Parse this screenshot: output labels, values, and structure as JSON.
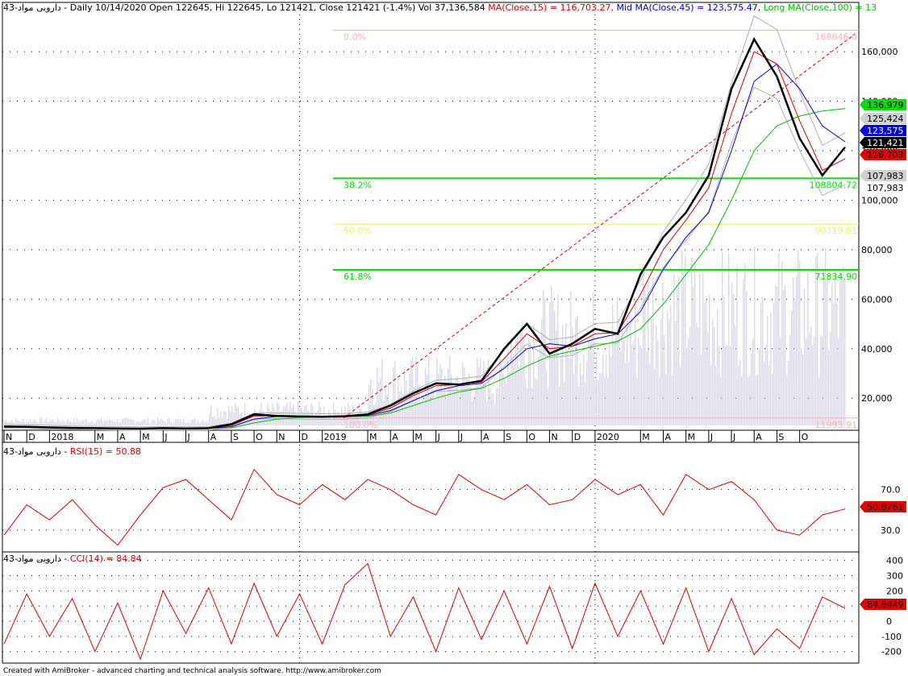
{
  "header": {
    "main": {
      "prefix": "43-دارویی مواد - Daily 10/14/2020 Open 122645, Hi 122645, Lo 121421, Close 121421 (-1.4%) Vol 37,136,584 ",
      "ma15": "MA(Close,15) = 116,703.27,",
      "ma45": " Mid MA(Close,45) = 123,575.47,",
      "ma100": " Long MA(Close,100) = 13"
    },
    "rsi": {
      "prefix": "43-دارویی مواد - ",
      "value": "RSI(15) = 50.88"
    },
    "cci": {
      "prefix": "43-دارویی مواد - ",
      "value": "CCI(14) = 84.84"
    }
  },
  "footer": "Created with AmiBroker - advanced charting and technical analysis software. http://www.amibroker.com",
  "colors": {
    "price": "#000000",
    "ma15": "#e00000",
    "ma45": "#0000e0",
    "ma100": "#00c000",
    "fib_green": "#00e000",
    "fib_yellow": "#f0f060",
    "fib_pink": "#ffb0b0",
    "trend": "#e00000",
    "volume": "#d8d8f0",
    "band": "#b0b0b0"
  },
  "chart_data": [
    {
      "type": "line",
      "panel": "price",
      "y_ticks": [
        20000,
        40000,
        60000,
        80000,
        100000,
        120000,
        140000,
        160000
      ],
      "y_tick_labels": [
        "20,000",
        "40,000",
        "60,000",
        "80,000",
        "100,000",
        "120,000",
        "140,000",
        "160,000"
      ],
      "ylim": [
        9000,
        175000
      ],
      "x_labels": [
        "N",
        "D",
        "2018",
        "M",
        "A",
        "M",
        "J",
        "J",
        "A",
        "S",
        "O",
        "N",
        "D",
        "2019",
        "M",
        "A",
        "M",
        "J",
        "J",
        "A",
        "S",
        "O",
        "N",
        "D",
        "2020",
        "M",
        "A",
        "M",
        "J",
        "J",
        "A",
        "S",
        "O"
      ],
      "x_label_months": [
        0,
        1,
        2,
        4,
        5,
        6,
        7,
        8,
        9,
        10,
        11,
        12,
        13,
        14,
        16,
        17,
        18,
        19,
        20,
        21,
        22,
        23,
        24,
        25,
        26,
        28,
        29,
        30,
        31,
        32,
        33,
        34,
        35
      ],
      "close": [
        8500,
        8400,
        8200,
        8000,
        7900,
        7800,
        7700,
        7900,
        7800,
        7900,
        9500,
        13500,
        12800,
        12600,
        12500,
        12700,
        13500,
        17000,
        22000,
        26000,
        25500,
        27000,
        40000,
        50000,
        38000,
        42000,
        48000,
        46000,
        70000,
        85000,
        95000,
        110000,
        145000,
        165000,
        150000,
        125000,
        110000,
        121421
      ],
      "ma15": [
        8600,
        8450,
        8250,
        8050,
        7950,
        7850,
        7750,
        7850,
        7850,
        7850,
        9000,
        12800,
        12900,
        12700,
        12600,
        12700,
        13200,
        16000,
        21000,
        25000,
        25500,
        26500,
        36000,
        46000,
        40000,
        41000,
        46000,
        46500,
        62000,
        80000,
        92000,
        105000,
        135000,
        160000,
        155000,
        132000,
        112000,
        116703
      ],
      "ma45": [
        8700,
        8500,
        8300,
        8100,
        8000,
        7900,
        7800,
        7800,
        7850,
        7850,
        8500,
        11500,
        12600,
        12700,
        12600,
        12650,
        13000,
        15000,
        19000,
        23000,
        25000,
        26000,
        32000,
        40000,
        42000,
        41000,
        44000,
        46000,
        55000,
        72000,
        85000,
        95000,
        120000,
        148000,
        155000,
        145000,
        130000,
        123575
      ],
      "ma100": [
        8800,
        8600,
        8400,
        8200,
        8050,
        7950,
        7850,
        7800,
        7800,
        7800,
        8000,
        10000,
        11500,
        12200,
        12400,
        12500,
        12700,
        14000,
        17000,
        20000,
        22500,
        24000,
        28000,
        33000,
        37000,
        39000,
        41000,
        43000,
        48000,
        58000,
        70000,
        82000,
        100000,
        120000,
        130000,
        134000,
        136000,
        136979
      ],
      "volume_max": 120000000,
      "right_labels": [
        {
          "text": "136,979",
          "bg": "#00e000",
          "fg": "#000000",
          "value": 136979
        },
        {
          "text": "125,424",
          "bg": "#d0d0d0",
          "fg": "#000000",
          "value": 125424
        },
        {
          "text": "123,575",
          "bg": "#0000e0",
          "fg": "#ffffff",
          "value": 123575
        },
        {
          "text": "121,421",
          "bg": "#000000",
          "fg": "#ffffff",
          "value": 121421
        },
        {
          "text": "116,703",
          "bg": "#e00000",
          "fg": "#000000",
          "value": 116703
        },
        {
          "text": "107,983",
          "bg": "#d0d0d0",
          "fg": "#000000",
          "value": 107983
        },
        {
          "text": "107,983",
          "bg": "#ffffff",
          "fg": "#000000",
          "value": 107983
        }
      ],
      "fib_levels": [
        {
          "pct": "0.0%",
          "value": 168646,
          "label": "168646.0",
          "color": "#ffb0b0"
        },
        {
          "pct": "38.2%",
          "value": 108804.72,
          "label": "108804.72",
          "color": "#00e000"
        },
        {
          "pct": "50.0%",
          "value": 90319.81,
          "label": "90319.81",
          "color": "#f0f060"
        },
        {
          "pct": "61.8%",
          "value": 71834.9,
          "label": "71834.90",
          "color": "#00e000"
        },
        {
          "pct": "100.0%",
          "value": 11993.91,
          "label": "11993.91",
          "color": "#ffb0b0"
        }
      ]
    },
    {
      "type": "line",
      "panel": "rsi",
      "y_ticks": [
        30,
        70
      ],
      "y_tick_labels": [
        "30.0",
        "70.0"
      ],
      "ylim": [
        10,
        100
      ],
      "last_label": "50.8761",
      "values": [
        25,
        55,
        40,
        60,
        35,
        15,
        45,
        72,
        80,
        60,
        40,
        90,
        65,
        55,
        75,
        60,
        80,
        70,
        55,
        45,
        85,
        70,
        60,
        75,
        55,
        60,
        80,
        65,
        75,
        45,
        85,
        70,
        78,
        60,
        30,
        25,
        45,
        50.88
      ]
    },
    {
      "type": "line",
      "panel": "cci",
      "y_ticks": [
        -200,
        -100,
        0,
        100,
        200,
        300,
        400
      ],
      "y_tick_labels": [
        "-200",
        "-100",
        "0",
        "100",
        "200",
        "300",
        "400"
      ],
      "ylim": [
        -260,
        430
      ],
      "last_label": "84.8449",
      "values": [
        -150,
        180,
        -100,
        150,
        -200,
        120,
        -250,
        200,
        -80,
        220,
        -150,
        250,
        -100,
        180,
        -150,
        240,
        380,
        -100,
        160,
        -200,
        220,
        -120,
        200,
        -150,
        230,
        -180,
        250,
        -100,
        200,
        -150,
        220,
        -200,
        150,
        -220,
        -50,
        -180,
        160,
        84.84
      ]
    }
  ]
}
